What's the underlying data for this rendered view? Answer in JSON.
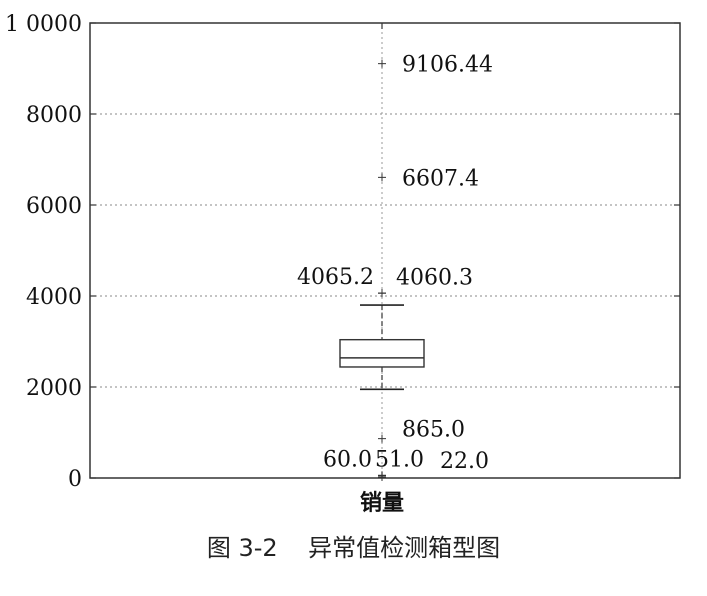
{
  "chart_data": {
    "type": "boxplot",
    "categories": [
      "销量"
    ],
    "ylim": [
      0,
      10000
    ],
    "y_ticks": [
      0,
      2000,
      4000,
      6000,
      8000,
      10000
    ],
    "y_tick_labels": [
      "0",
      "2000",
      "4000",
      "6000",
      "8000",
      "1 0000"
    ],
    "grid": true,
    "box": {
      "whisker_low": 1950,
      "q1": 2440,
      "median": 2640,
      "q3": 3040,
      "whisker_high": 3800
    },
    "outliers": [
      {
        "value": 9106.44,
        "label": "9106.44"
      },
      {
        "value": 6607.4,
        "label": "6607.4"
      },
      {
        "value": 4065.2,
        "label": "4065.2"
      },
      {
        "value": 4060.3,
        "label": "4060.3"
      },
      {
        "value": 865.0,
        "label": "865.0"
      },
      {
        "value": 60.0,
        "label": "60.0"
      },
      {
        "value": 51.0,
        "label": "51.0"
      },
      {
        "value": 22.0,
        "label": "22.0"
      }
    ]
  },
  "caption": {
    "figure_no": "图 3-2",
    "text": "异常值检测箱型图"
  }
}
